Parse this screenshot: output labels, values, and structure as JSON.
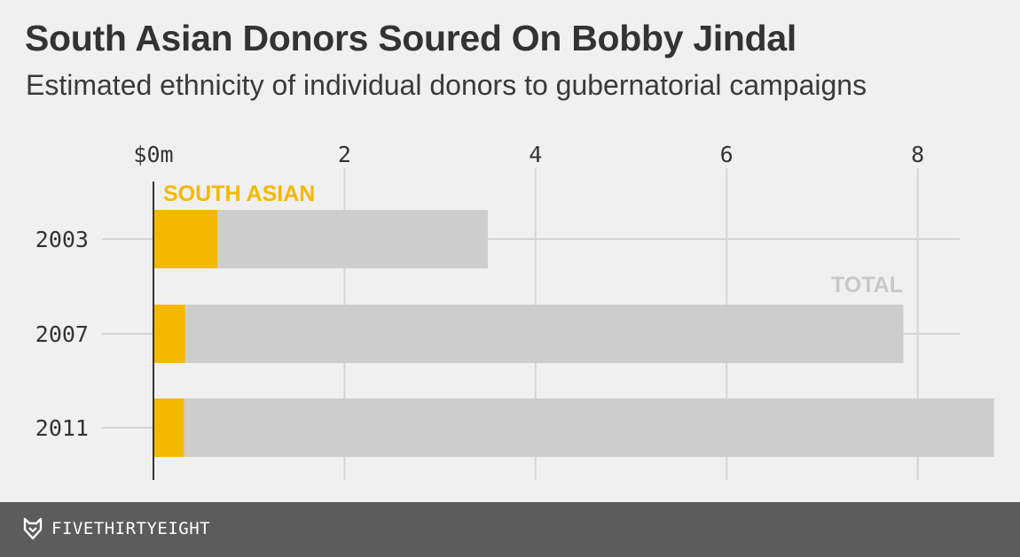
{
  "header": {
    "title": "South Asian Donors Soured On Bobby Jindal",
    "subtitle": "Estimated ethnicity of individual donors to gubernatorial campaigns"
  },
  "footer": {
    "brand": "FIVETHIRTYEIGHT",
    "logo_icon": "fox-icon"
  },
  "chart_data": {
    "type": "bar",
    "orientation": "horizontal",
    "title": "South Asian Donors Soured On Bobby Jindal",
    "subtitle": "Estimated ethnicity of individual donors to gubernatorial campaigns",
    "categories": [
      "2003",
      "2007",
      "2011"
    ],
    "series": [
      {
        "name": "TOTAL",
        "values": [
          3.5,
          7.85,
          8.8
        ],
        "color": "#cdcdcd"
      },
      {
        "name": "SOUTH ASIAN",
        "values": [
          0.67,
          0.33,
          0.32
        ],
        "color": "#f5b800"
      }
    ],
    "x_ticks": [
      "$0m",
      "2",
      "4",
      "6",
      "8"
    ],
    "x_tick_values": [
      0,
      2,
      4,
      6,
      8
    ],
    "xlim": [
      0,
      8.8
    ],
    "grid": true,
    "xlabel": "",
    "ylabel": ""
  }
}
